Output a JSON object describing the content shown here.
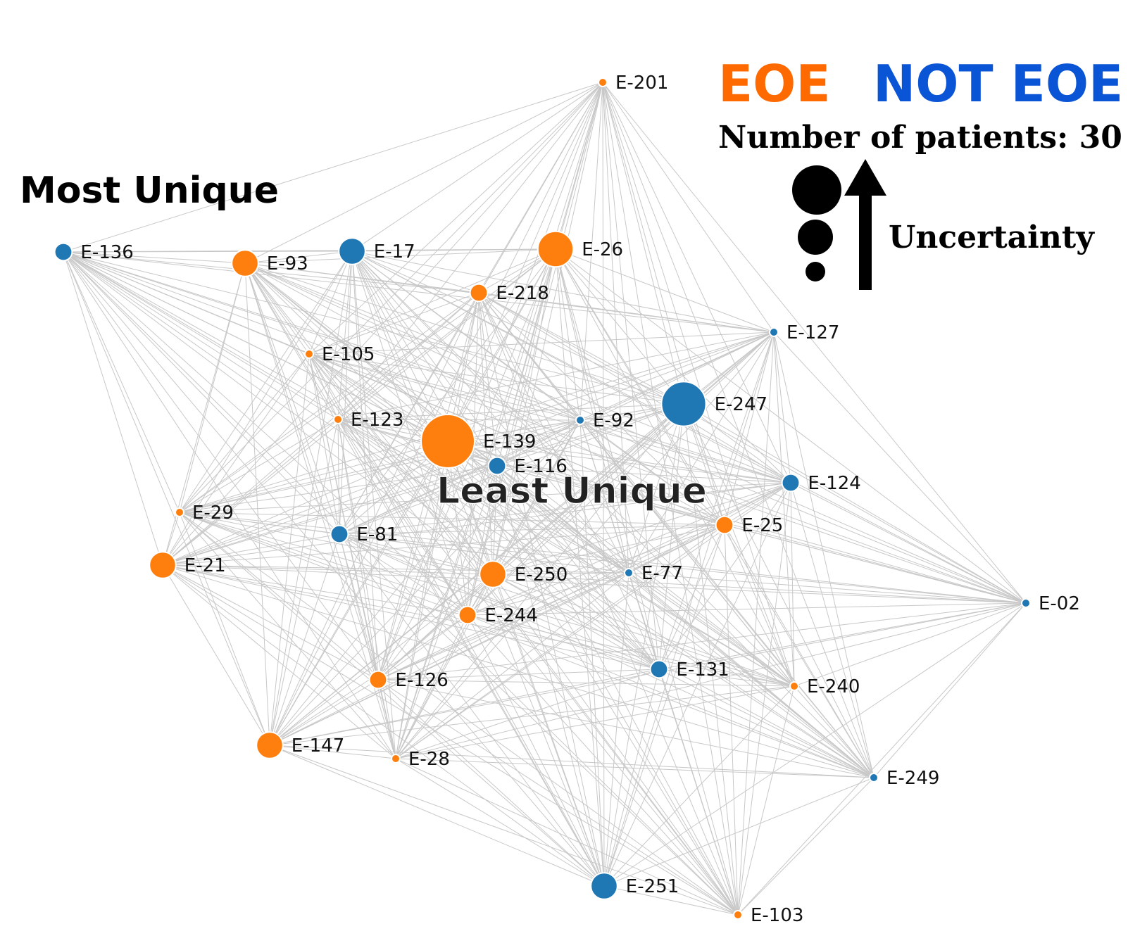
{
  "legend": {
    "eoe_label": "EOE",
    "not_eoe_label": "NOT EOE",
    "eoe_color": "#ff6a00",
    "not_eoe_color": "#0a55d6",
    "patient_count_text": "Number of patients: 30",
    "uncertainty_label": "Uncertainty"
  },
  "annotations": {
    "most_unique": "Most Unique",
    "least_unique": "Least Unique"
  },
  "colors": {
    "eoe_node": "#ff7f0e",
    "not_eoe_node": "#1f77b4",
    "edge": "#c8c8c8"
  },
  "chart_data": {
    "type": "network",
    "fully_connected": true,
    "nodes": [
      {
        "id": "E-201",
        "class": "EOE",
        "uncertainty": 1
      },
      {
        "id": "E-136",
        "class": "NOT EOE",
        "uncertainty": 2
      },
      {
        "id": "E-93",
        "class": "EOE",
        "uncertainty": 3
      },
      {
        "id": "E-17",
        "class": "NOT EOE",
        "uncertainty": 3
      },
      {
        "id": "E-26",
        "class": "EOE",
        "uncertainty": 4
      },
      {
        "id": "E-218",
        "class": "EOE",
        "uncertainty": 2
      },
      {
        "id": "E-127",
        "class": "NOT EOE",
        "uncertainty": 1
      },
      {
        "id": "E-105",
        "class": "EOE",
        "uncertainty": 1
      },
      {
        "id": "E-247",
        "class": "NOT EOE",
        "uncertainty": 5
      },
      {
        "id": "E-123",
        "class": "EOE",
        "uncertainty": 1
      },
      {
        "id": "E-92",
        "class": "NOT EOE",
        "uncertainty": 1
      },
      {
        "id": "E-139",
        "class": "EOE",
        "uncertainty": 6
      },
      {
        "id": "E-116",
        "class": "NOT EOE",
        "uncertainty": 2
      },
      {
        "id": "E-124",
        "class": "NOT EOE",
        "uncertainty": 2
      },
      {
        "id": "E-29",
        "class": "EOE",
        "uncertainty": 1
      },
      {
        "id": "E-25",
        "class": "EOE",
        "uncertainty": 2
      },
      {
        "id": "E-81",
        "class": "NOT EOE",
        "uncertainty": 2
      },
      {
        "id": "E-21",
        "class": "EOE",
        "uncertainty": 3
      },
      {
        "id": "E-250",
        "class": "EOE",
        "uncertainty": 3
      },
      {
        "id": "E-77",
        "class": "NOT EOE",
        "uncertainty": 1
      },
      {
        "id": "E-02",
        "class": "NOT EOE",
        "uncertainty": 1
      },
      {
        "id": "E-244",
        "class": "EOE",
        "uncertainty": 2
      },
      {
        "id": "E-131",
        "class": "NOT EOE",
        "uncertainty": 2
      },
      {
        "id": "E-126",
        "class": "EOE",
        "uncertainty": 2
      },
      {
        "id": "E-240",
        "class": "EOE",
        "uncertainty": 1
      },
      {
        "id": "E-147",
        "class": "EOE",
        "uncertainty": 3
      },
      {
        "id": "E-28",
        "class": "EOE",
        "uncertainty": 1
      },
      {
        "id": "E-249",
        "class": "NOT EOE",
        "uncertainty": 1
      },
      {
        "id": "E-251",
        "class": "NOT EOE",
        "uncertainty": 3
      },
      {
        "id": "E-103",
        "class": "EOE",
        "uncertainty": 1
      }
    ]
  }
}
